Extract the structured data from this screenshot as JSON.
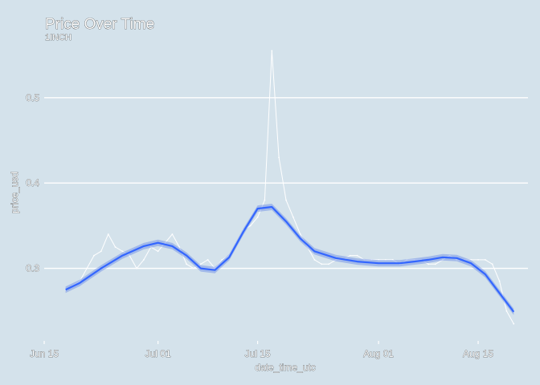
{
  "chart_data": {
    "type": "line",
    "title": "Price Over Time",
    "subtitle": "1INCH",
    "xlabel": "date_time_utc",
    "ylabel": "price_usd",
    "x_type": "date",
    "xlim": [
      "2021-06-15",
      "2021-08-22"
    ],
    "ylim": [
      0.215,
      0.56
    ],
    "x_ticks": [
      {
        "date": "2021-06-15",
        "label": "Jun 15"
      },
      {
        "date": "2021-07-01",
        "label": "Jul 01"
      },
      {
        "date": "2021-07-15",
        "label": "Jul 15"
      },
      {
        "date": "2021-08-01",
        "label": "Aug 01"
      },
      {
        "date": "2021-08-15",
        "label": "Aug 15"
      }
    ],
    "y_ticks": [
      {
        "value": 0.3,
        "label": "0.3"
      },
      {
        "value": 0.4,
        "label": "0.4"
      },
      {
        "value": 0.5,
        "label": "0.5"
      }
    ],
    "grid": true,
    "legend": "none",
    "colors": {
      "background": "#d4e2eb",
      "price_line": "#ffffff",
      "smooth_line": "#3366ff",
      "smooth_band": "#6f8fe8",
      "grid": "#ffffff"
    },
    "series": [
      {
        "kind": "price",
        "x": [
          "2021-06-18",
          "2021-06-19",
          "2021-06-20",
          "2021-06-21",
          "2021-06-22",
          "2021-06-23",
          "2021-06-24",
          "2021-06-25",
          "2021-06-26",
          "2021-06-27",
          "2021-06-28",
          "2021-06-29",
          "2021-06-30",
          "2021-07-01",
          "2021-07-02",
          "2021-07-03",
          "2021-07-04",
          "2021-07-05",
          "2021-07-06",
          "2021-07-07",
          "2021-07-08",
          "2021-07-09",
          "2021-07-10",
          "2021-07-11",
          "2021-07-12",
          "2021-07-13",
          "2021-07-14",
          "2021-07-15",
          "2021-07-16",
          "2021-07-17",
          "2021-07-18",
          "2021-07-19",
          "2021-07-20",
          "2021-07-21",
          "2021-07-22",
          "2021-07-23",
          "2021-07-24",
          "2021-07-25",
          "2021-07-26",
          "2021-07-27",
          "2021-07-28",
          "2021-07-29",
          "2021-07-30",
          "2021-07-31",
          "2021-08-01",
          "2021-08-02",
          "2021-08-03",
          "2021-08-04",
          "2021-08-05",
          "2021-08-06",
          "2021-08-07",
          "2021-08-08",
          "2021-08-09",
          "2021-08-10",
          "2021-08-11",
          "2021-08-12",
          "2021-08-13",
          "2021-08-14",
          "2021-08-15",
          "2021-08-16",
          "2021-08-17",
          "2021-08-18",
          "2021-08-19",
          "2021-08-20"
        ],
        "y": [
          0.275,
          0.28,
          0.285,
          0.3,
          0.315,
          0.32,
          0.34,
          0.325,
          0.32,
          0.315,
          0.3,
          0.31,
          0.325,
          0.32,
          0.33,
          0.34,
          0.325,
          0.305,
          0.3,
          0.305,
          0.31,
          0.3,
          0.31,
          0.315,
          0.33,
          0.345,
          0.35,
          0.36,
          0.38,
          0.555,
          0.43,
          0.38,
          0.36,
          0.34,
          0.325,
          0.31,
          0.305,
          0.305,
          0.31,
          0.31,
          0.315,
          0.315,
          0.31,
          0.31,
          0.31,
          0.31,
          0.31,
          0.305,
          0.31,
          0.31,
          0.31,
          0.305,
          0.305,
          0.31,
          0.315,
          0.31,
          0.31,
          0.31,
          0.31,
          0.31,
          0.305,
          0.285,
          0.25,
          0.235
        ]
      },
      {
        "kind": "smooth",
        "x": [
          "2021-06-18",
          "2021-06-20",
          "2021-06-23",
          "2021-06-26",
          "2021-06-29",
          "2021-07-01",
          "2021-07-03",
          "2021-07-05",
          "2021-07-07",
          "2021-07-09",
          "2021-07-11",
          "2021-07-13",
          "2021-07-15",
          "2021-07-17",
          "2021-07-19",
          "2021-07-21",
          "2021-07-23",
          "2021-07-26",
          "2021-07-29",
          "2021-08-01",
          "2021-08-04",
          "2021-08-06",
          "2021-08-08",
          "2021-08-10",
          "2021-08-12",
          "2021-08-14",
          "2021-08-16",
          "2021-08-18",
          "2021-08-20"
        ],
        "y": [
          0.275,
          0.283,
          0.3,
          0.315,
          0.326,
          0.33,
          0.326,
          0.315,
          0.3,
          0.298,
          0.313,
          0.343,
          0.37,
          0.372,
          0.355,
          0.335,
          0.32,
          0.312,
          0.308,
          0.306,
          0.306,
          0.308,
          0.31,
          0.313,
          0.312,
          0.306,
          0.293,
          0.271,
          0.249
        ]
      }
    ]
  }
}
